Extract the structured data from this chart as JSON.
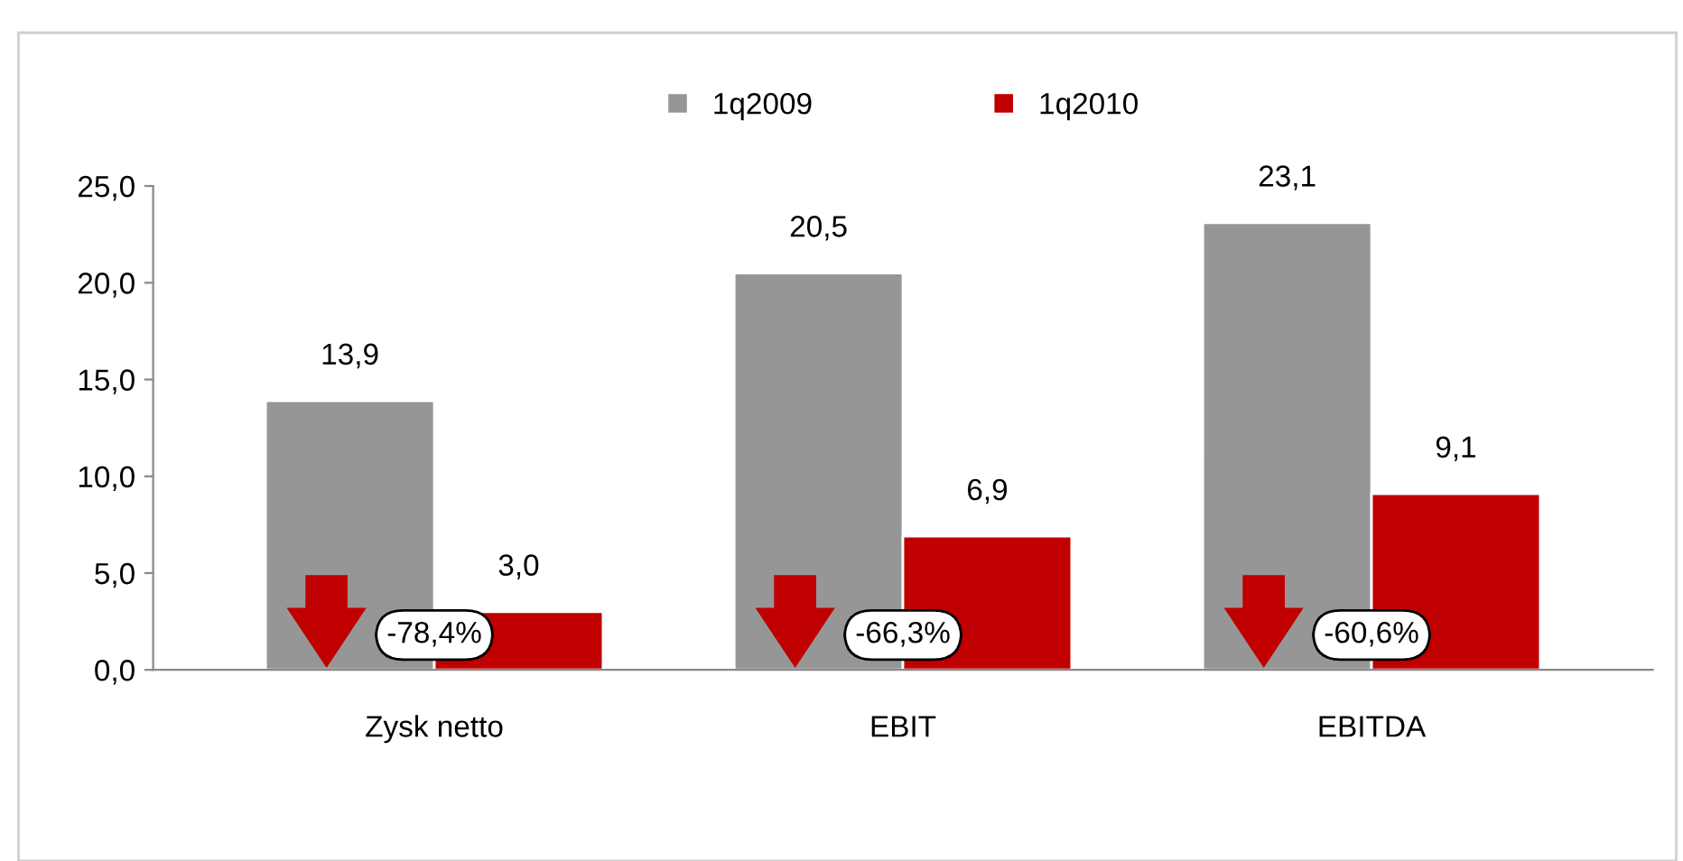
{
  "chart_data": {
    "type": "bar",
    "categories": [
      "Zysk netto",
      "EBIT",
      "EBITDA"
    ],
    "series": [
      {
        "name": "1q2009",
        "color": "#969696",
        "values": [
          13.9,
          20.5,
          23.1
        ],
        "value_labels": [
          "13,9",
          "20,5",
          "23,1"
        ]
      },
      {
        "name": "1q2010",
        "color": "#c00000",
        "values": [
          3.0,
          6.9,
          9.1
        ],
        "value_labels": [
          "3,0",
          "6,9",
          "9,1"
        ]
      }
    ],
    "ylim": [
      0,
      25
    ],
    "yticks": [
      {
        "value": 0,
        "label": "0,0"
      },
      {
        "value": 5,
        "label": "5,0"
      },
      {
        "value": 10,
        "label": "10,0"
      },
      {
        "value": 15,
        "label": "15,0"
      },
      {
        "value": 20,
        "label": "20,0"
      },
      {
        "value": 25,
        "label": "25,0"
      }
    ],
    "annotations": [
      {
        "text": "-78,4%",
        "x": "Zysk netto",
        "y": 1.8
      },
      {
        "text": "-66,3%",
        "x": "EBIT",
        "y": 1.8
      },
      {
        "text": "-60,6%",
        "x": "EBITDA",
        "y": 1.8
      }
    ],
    "legend": "top",
    "grid": false
  }
}
